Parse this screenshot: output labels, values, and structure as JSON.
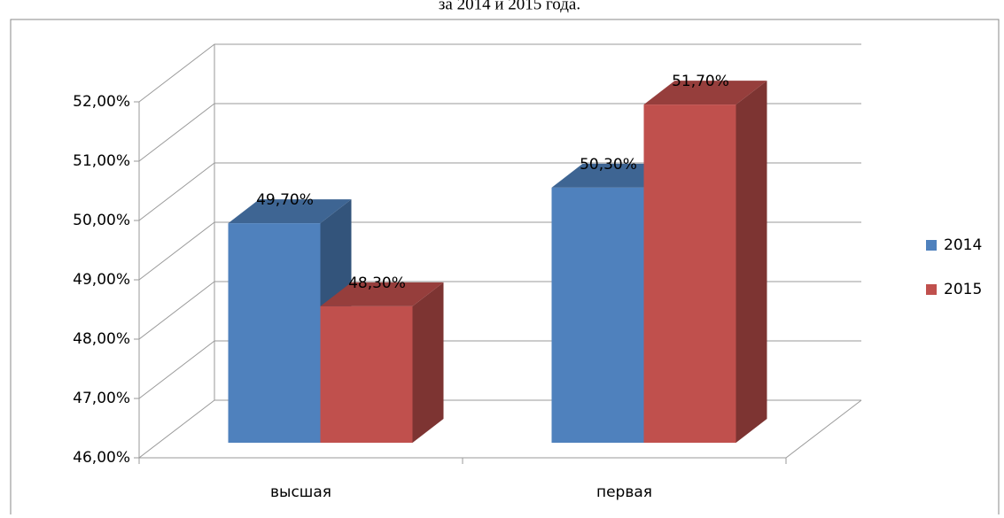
{
  "chart_data": {
    "type": "bar3d",
    "title": "за 2014 и 2015 года.",
    "categories": [
      "высшая",
      "первая"
    ],
    "series": [
      {
        "name": "2014",
        "color": "#4f81bd",
        "values": [
          49.7,
          50.3
        ],
        "value_labels": [
          "49,70%",
          "50,30%"
        ]
      },
      {
        "name": "2015",
        "color": "#c0504d",
        "values": [
          48.3,
          51.7
        ],
        "value_labels": [
          "48,30%",
          "51,70%"
        ]
      }
    ],
    "ylim": [
      46,
      52
    ],
    "yticks": [
      {
        "value": 46,
        "label": "46,00%"
      },
      {
        "value": 47,
        "label": "47,00%"
      },
      {
        "value": 48,
        "label": "48,00%"
      },
      {
        "value": 49,
        "label": "49,00%"
      },
      {
        "value": 50,
        "label": "50,00%"
      },
      {
        "value": 51,
        "label": "51,00%"
      },
      {
        "value": 52,
        "label": "52,00%"
      }
    ],
    "grid": true,
    "legend": "right"
  }
}
